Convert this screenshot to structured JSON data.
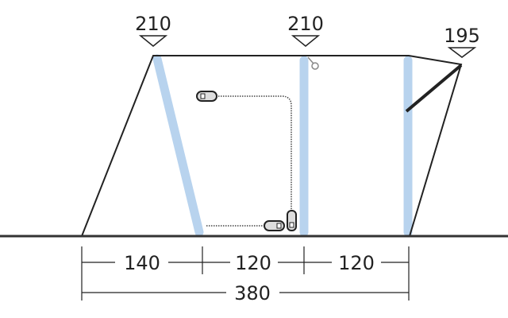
{
  "heights": [
    {
      "label": "210"
    },
    {
      "label": "210"
    },
    {
      "label": "195"
    }
  ],
  "widths": [
    {
      "label": "140"
    },
    {
      "label": "120"
    },
    {
      "label": "120"
    }
  ],
  "total_width": {
    "label": "380"
  },
  "colors": {
    "outline": "#222222",
    "pole": "#b8d3ee",
    "ground": "#333333"
  }
}
